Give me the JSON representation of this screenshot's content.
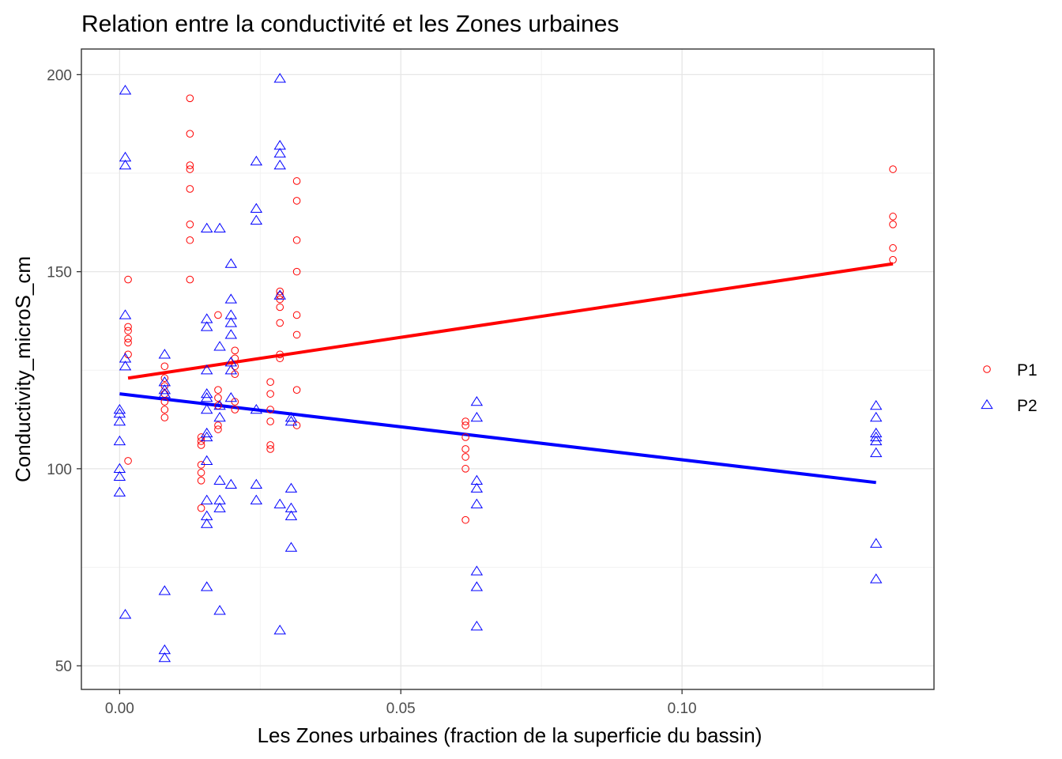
{
  "chart_data": {
    "type": "scatter",
    "title": "Relation entre la conductivité et les Zones urbaines",
    "xlabel": "Les Zones urbaines (fraction de la superficie du bassin)",
    "ylabel": "Conductivity_microS_cm",
    "xlim": [
      -0.0068,
      0.1448
    ],
    "ylim": [
      44,
      206.5
    ],
    "x_ticks": [
      0.0,
      0.05,
      0.1
    ],
    "x_tick_labels": [
      "0.00",
      "0.05",
      "0.10"
    ],
    "y_ticks": [
      50,
      100,
      150,
      200
    ],
    "y_tick_labels": [
      "50",
      "100",
      "150",
      "200"
    ],
    "grid": true,
    "legend_position": "right",
    "series": [
      {
        "name": "P1",
        "color": "#ff0000",
        "marker": "circle",
        "points": [
          [
            0.0015,
            148
          ],
          [
            0.0015,
            136
          ],
          [
            0.0015,
            135
          ],
          [
            0.0015,
            133
          ],
          [
            0.0015,
            132
          ],
          [
            0.0015,
            129
          ],
          [
            0.0015,
            102
          ],
          [
            0.008,
            126
          ],
          [
            0.008,
            123
          ],
          [
            0.008,
            121
          ],
          [
            0.008,
            119
          ],
          [
            0.008,
            117
          ],
          [
            0.008,
            115
          ],
          [
            0.008,
            113
          ],
          [
            0.0125,
            194
          ],
          [
            0.0125,
            185
          ],
          [
            0.0125,
            177
          ],
          [
            0.0125,
            176
          ],
          [
            0.0125,
            171
          ],
          [
            0.0125,
            162
          ],
          [
            0.0125,
            158
          ],
          [
            0.0125,
            148
          ],
          [
            0.0145,
            108
          ],
          [
            0.0145,
            107
          ],
          [
            0.0145,
            106
          ],
          [
            0.0145,
            101
          ],
          [
            0.0145,
            99
          ],
          [
            0.0145,
            97
          ],
          [
            0.0145,
            90
          ],
          [
            0.0175,
            139
          ],
          [
            0.0175,
            120
          ],
          [
            0.0175,
            118
          ],
          [
            0.0175,
            116
          ],
          [
            0.0175,
            111
          ],
          [
            0.0175,
            110
          ],
          [
            0.0205,
            130
          ],
          [
            0.0205,
            128
          ],
          [
            0.0205,
            126
          ],
          [
            0.0205,
            124
          ],
          [
            0.0205,
            117
          ],
          [
            0.0205,
            115
          ],
          [
            0.0268,
            122
          ],
          [
            0.0268,
            119
          ],
          [
            0.0268,
            115
          ],
          [
            0.0268,
            112
          ],
          [
            0.0268,
            106
          ],
          [
            0.0268,
            105
          ],
          [
            0.0285,
            145
          ],
          [
            0.0285,
            144
          ],
          [
            0.0285,
            143
          ],
          [
            0.0285,
            141
          ],
          [
            0.0285,
            137
          ],
          [
            0.0285,
            129
          ],
          [
            0.0285,
            128
          ],
          [
            0.0315,
            173
          ],
          [
            0.0315,
            168
          ],
          [
            0.0315,
            158
          ],
          [
            0.0315,
            150
          ],
          [
            0.0315,
            139
          ],
          [
            0.0315,
            134
          ],
          [
            0.0315,
            120
          ],
          [
            0.0315,
            111
          ],
          [
            0.0615,
            112
          ],
          [
            0.0615,
            111
          ],
          [
            0.0615,
            108
          ],
          [
            0.0615,
            105
          ],
          [
            0.0615,
            103
          ],
          [
            0.0615,
            100
          ],
          [
            0.0615,
            87
          ],
          [
            0.1375,
            176
          ],
          [
            0.1375,
            164
          ],
          [
            0.1375,
            162
          ],
          [
            0.1375,
            156
          ],
          [
            0.1375,
            153
          ]
        ],
        "trend": [
          [
            0.0015,
            123
          ],
          [
            0.1375,
            152
          ]
        ]
      },
      {
        "name": "P2",
        "color": "#0000ff",
        "marker": "triangle",
        "points": [
          [
            0.0,
            115
          ],
          [
            0.0,
            114
          ],
          [
            0.0,
            112
          ],
          [
            0.0,
            107
          ],
          [
            0.0,
            100
          ],
          [
            0.0,
            98
          ],
          [
            0.0,
            94
          ],
          [
            0.001,
            196
          ],
          [
            0.001,
            179
          ],
          [
            0.001,
            177
          ],
          [
            0.001,
            139
          ],
          [
            0.001,
            128
          ],
          [
            0.001,
            126
          ],
          [
            0.001,
            63
          ],
          [
            0.008,
            129
          ],
          [
            0.008,
            122
          ],
          [
            0.008,
            120
          ],
          [
            0.008,
            119
          ],
          [
            0.008,
            69
          ],
          [
            0.008,
            54
          ],
          [
            0.008,
            52
          ],
          [
            0.0155,
            161
          ],
          [
            0.0155,
            138
          ],
          [
            0.0155,
            136
          ],
          [
            0.0155,
            125
          ],
          [
            0.0155,
            119
          ],
          [
            0.0155,
            118
          ],
          [
            0.0155,
            115
          ],
          [
            0.0155,
            109
          ],
          [
            0.0155,
            108
          ],
          [
            0.0155,
            102
          ],
          [
            0.0155,
            92
          ],
          [
            0.0155,
            88
          ],
          [
            0.0155,
            86
          ],
          [
            0.0155,
            70
          ],
          [
            0.0178,
            161
          ],
          [
            0.0178,
            131
          ],
          [
            0.0178,
            116
          ],
          [
            0.0178,
            113
          ],
          [
            0.0178,
            97
          ],
          [
            0.0178,
            92
          ],
          [
            0.0178,
            90
          ],
          [
            0.0178,
            64
          ],
          [
            0.0198,
            152
          ],
          [
            0.0198,
            143
          ],
          [
            0.0198,
            139
          ],
          [
            0.0198,
            137
          ],
          [
            0.0198,
            134
          ],
          [
            0.0198,
            127
          ],
          [
            0.0198,
            125
          ],
          [
            0.0198,
            118
          ],
          [
            0.0198,
            96
          ],
          [
            0.0243,
            178
          ],
          [
            0.0243,
            166
          ],
          [
            0.0243,
            163
          ],
          [
            0.0243,
            115
          ],
          [
            0.0243,
            96
          ],
          [
            0.0243,
            92
          ],
          [
            0.0285,
            199
          ],
          [
            0.0285,
            182
          ],
          [
            0.0285,
            180
          ],
          [
            0.0285,
            177
          ],
          [
            0.0285,
            144
          ],
          [
            0.0285,
            91
          ],
          [
            0.0285,
            59
          ],
          [
            0.0305,
            113
          ],
          [
            0.0305,
            112
          ],
          [
            0.0305,
            95
          ],
          [
            0.0305,
            90
          ],
          [
            0.0305,
            88
          ],
          [
            0.0305,
            80
          ],
          [
            0.0635,
            117
          ],
          [
            0.0635,
            113
          ],
          [
            0.0635,
            97
          ],
          [
            0.0635,
            95
          ],
          [
            0.0635,
            91
          ],
          [
            0.0635,
            74
          ],
          [
            0.0635,
            70
          ],
          [
            0.0635,
            60
          ],
          [
            0.1345,
            116
          ],
          [
            0.1345,
            113
          ],
          [
            0.1345,
            109
          ],
          [
            0.1345,
            108
          ],
          [
            0.1345,
            107
          ],
          [
            0.1345,
            104
          ],
          [
            0.1345,
            81
          ],
          [
            0.1345,
            72
          ]
        ],
        "trend": [
          [
            0.0,
            119
          ],
          [
            0.1345,
            96.5
          ]
        ]
      }
    ]
  }
}
